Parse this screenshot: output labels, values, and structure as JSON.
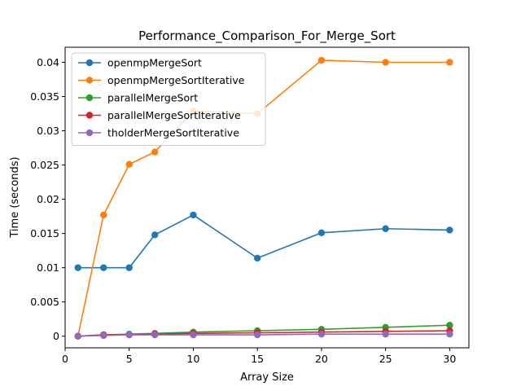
{
  "chart_data": {
    "type": "line",
    "title": "Performance_Comparison_For_Merge_Sort",
    "xlabel": "Array Size",
    "ylabel": "Time (seconds)",
    "xlim": [
      0,
      31.5
    ],
    "ylim": [
      -0.0017,
      0.0422
    ],
    "xticks": [
      0,
      5,
      10,
      15,
      20,
      25,
      30
    ],
    "xtick_labels": [
      "0",
      "5",
      "10",
      "15",
      "20",
      "25",
      "30"
    ],
    "yticks": [
      0,
      0.005,
      0.01,
      0.015,
      0.02,
      0.025,
      0.03,
      0.035,
      0.04
    ],
    "ytick_labels": [
      "0",
      "0.005",
      "0.01",
      "0.015",
      "0.02",
      "0.025",
      "0.03",
      "0.035",
      "0.04"
    ],
    "grid": false,
    "legend_position": "top-left",
    "x": [
      1,
      3,
      5,
      7,
      10,
      15,
      20,
      25,
      30
    ],
    "series": [
      {
        "name": "openmpMergeSort",
        "color": "#1f77b4",
        "values": [
          0.01,
          0.01,
          0.01,
          0.0148,
          0.0177,
          0.0114,
          0.0151,
          0.0157,
          0.0155
        ]
      },
      {
        "name": "openmpMergeSortIterative",
        "color": "#ff7f0e",
        "values": [
          0.0,
          0.0177,
          0.0251,
          0.0269,
          0.0329,
          0.0325,
          0.0403,
          0.04,
          0.04
        ]
      },
      {
        "name": "parallelMergeSort",
        "color": "#2ca02c",
        "values": [
          0.0,
          0.0002,
          0.0003,
          0.0004,
          0.0006,
          0.0008,
          0.001,
          0.0013,
          0.0016
        ]
      },
      {
        "name": "parallelMergeSortIterative",
        "color": "#d62728",
        "values": [
          0.0,
          0.0002,
          0.0002,
          0.0003,
          0.0004,
          0.0005,
          0.0006,
          0.0007,
          0.0008
        ]
      },
      {
        "name": "tholderMergeSortIterative",
        "color": "#9467bd",
        "values": [
          0.0,
          0.0001,
          0.0002,
          0.0002,
          0.0002,
          0.0002,
          0.0003,
          0.0003,
          0.0003
        ]
      }
    ]
  }
}
